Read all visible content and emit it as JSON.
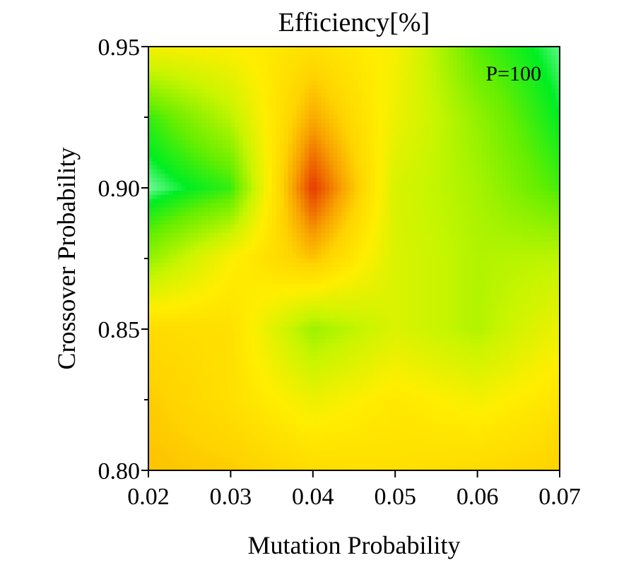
{
  "chart_data": {
    "type": "heatmap",
    "title": "Efficiency[%]",
    "xlabel": "Mutation Probability",
    "ylabel": "Crossover Probability",
    "annotation": "P=100",
    "x": [
      0.02,
      0.03,
      0.04,
      0.05,
      0.06,
      0.07
    ],
    "y": [
      0.8,
      0.825,
      0.85,
      0.875,
      0.9,
      0.925,
      0.95
    ],
    "xlim": [
      0.02,
      0.07
    ],
    "ylim": [
      0.8,
      0.95
    ],
    "x_ticks": [
      "0.02",
      "0.03",
      "0.04",
      "0.05",
      "0.06",
      "0.07"
    ],
    "y_ticks": [
      "0.80",
      "0.85",
      "0.90",
      "0.95"
    ],
    "y_tick_values": [
      0.8,
      0.85,
      0.9,
      0.95
    ],
    "y_minor_ticks": [
      0.825,
      0.875,
      0.925
    ],
    "z": [
      [
        0.28,
        0.3,
        0.36,
        0.38,
        0.35,
        0.32
      ],
      [
        0.3,
        0.38,
        0.5,
        0.42,
        0.48,
        0.4
      ],
      [
        0.36,
        0.38,
        0.68,
        0.55,
        0.64,
        0.5
      ],
      [
        0.7,
        0.46,
        0.28,
        0.55,
        0.64,
        0.62
      ],
      [
        0.96,
        0.84,
        0.0,
        0.56,
        0.66,
        0.82
      ],
      [
        0.84,
        0.62,
        0.22,
        0.5,
        0.7,
        0.9
      ],
      [
        0.48,
        0.45,
        0.38,
        0.47,
        0.8,
        0.95
      ]
    ],
    "colorscale": [
      [
        0.0,
        "#e63a00"
      ],
      [
        0.2,
        "#f8a200"
      ],
      [
        0.32,
        "#ffd400"
      ],
      [
        0.45,
        "#ffee00"
      ],
      [
        0.6,
        "#c8f500"
      ],
      [
        0.78,
        "#66ee00"
      ],
      [
        0.9,
        "#00ee22"
      ],
      [
        1.0,
        "#bbffee"
      ]
    ],
    "grid": false
  }
}
